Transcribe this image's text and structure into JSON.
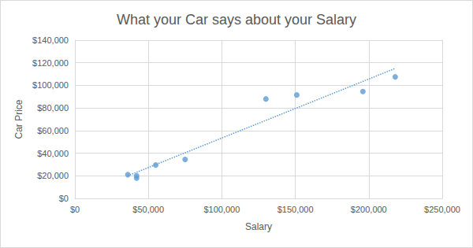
{
  "chart_data": {
    "type": "scatter",
    "title": "What your Car says about your Salary",
    "x_label": "Salary",
    "y_label": "Car Price",
    "x": [
      36000,
      42000,
      42000,
      55000,
      75000,
      130000,
      151000,
      196000,
      218000
    ],
    "values": [
      21000,
      20000,
      18000,
      29500,
      34500,
      88000,
      91500,
      94500,
      107500
    ],
    "color": "#5b9bd5",
    "marker": "circle",
    "trendline": {
      "x": [
        36000,
        218000
      ],
      "y": [
        20000,
        115000
      ],
      "color": "#5b9bd5",
      "line_style": "dotted"
    },
    "xlim": [
      0,
      250000
    ],
    "xticks": [
      {
        "value": 0,
        "label": "$0"
      },
      {
        "value": 50000,
        "label": "$50,000"
      },
      {
        "value": 100000,
        "label": "$100,000"
      },
      {
        "value": 150000,
        "label": "$150,000"
      },
      {
        "value": 200000,
        "label": "$200,000"
      },
      {
        "value": 250000,
        "label": "$250,000"
      }
    ],
    "ylim": [
      0,
      140000
    ],
    "yticks": [
      {
        "value": 0,
        "label": "$0"
      },
      {
        "value": 20000,
        "label": "$20,000"
      },
      {
        "value": 40000,
        "label": "$40,000"
      },
      {
        "value": 60000,
        "label": "$60,000"
      },
      {
        "value": 80000,
        "label": "$80,000"
      },
      {
        "value": 100000,
        "label": "$100,000"
      },
      {
        "value": 120000,
        "label": "$120,000"
      },
      {
        "value": 140000,
        "label": "$140,000"
      }
    ],
    "grid": true
  }
}
